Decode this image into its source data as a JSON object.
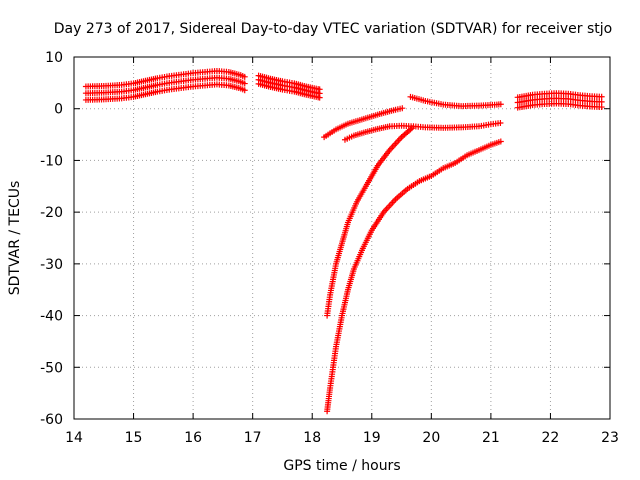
{
  "chart_data": {
    "type": "scatter",
    "title": "Day 273 of 2017, Sidereal Day-to-day VTEC variation (SDTVAR) for receiver stjo",
    "xlabel": "GPS time / hours",
    "ylabel": "SDTVAR / TECUs",
    "xlim": [
      14,
      23
    ],
    "ylim": [
      -60,
      10
    ],
    "xticks": [
      "14",
      "15",
      "16",
      "17",
      "18",
      "19",
      "20",
      "21",
      "22",
      "23"
    ],
    "yticks": [
      "10",
      "0",
      "-10",
      "-20",
      "-30",
      "-40",
      "-50",
      "-60"
    ],
    "grid": true,
    "marker": "+",
    "color": "#ff0000",
    "series": [
      {
        "x": [
          14.2,
          14.5,
          14.8,
          15.0,
          15.2,
          15.4,
          15.6,
          15.8,
          16.0,
          16.2,
          16.4,
          16.6,
          16.8,
          16.9
        ],
        "y": [
          3.0,
          3.1,
          3.3,
          3.6,
          4.1,
          4.6,
          5.0,
          5.3,
          5.6,
          5.8,
          6.0,
          5.8,
          5.2,
          4.7
        ],
        "band": 1.3
      },
      {
        "x": [
          17.1,
          17.3,
          17.5,
          17.7,
          17.9,
          18.1,
          18.15
        ],
        "y": [
          5.6,
          5.0,
          4.5,
          4.1,
          3.5,
          3.0,
          2.9
        ],
        "band": 0.8
      },
      {
        "x": [
          19.65,
          19.9,
          20.2,
          20.5,
          20.8,
          21.1,
          21.2
        ],
        "y": [
          2.3,
          1.5,
          0.8,
          0.5,
          0.6,
          0.8,
          0.9
        ],
        "band": 0.5
      },
      {
        "x": [
          21.45,
          21.7,
          21.9,
          22.1,
          22.3,
          22.5,
          22.7,
          22.9
        ],
        "y": [
          1.2,
          1.7,
          1.9,
          2.0,
          1.9,
          1.6,
          1.4,
          1.3
        ],
        "band": 1.0
      },
      {
        "x": [
          18.2,
          18.4,
          18.6,
          18.8,
          19.0,
          19.2,
          19.4,
          19.55
        ],
        "y": [
          -5.5,
          -4.0,
          -2.9,
          -2.2,
          -1.5,
          -0.8,
          -0.2,
          0.2
        ],
        "band": 0.3
      },
      {
        "x": [
          18.55,
          18.7,
          18.9,
          19.1,
          19.3,
          19.5,
          19.7,
          19.9,
          20.2,
          20.5,
          20.8,
          21.0,
          21.2
        ],
        "y": [
          -6.0,
          -5.2,
          -4.5,
          -3.9,
          -3.4,
          -3.3,
          -3.4,
          -3.6,
          -3.7,
          -3.6,
          -3.4,
          -3.0,
          -2.7
        ],
        "band": 0.3
      },
      {
        "x": [
          18.25,
          18.3,
          18.4,
          18.5,
          18.6,
          18.75,
          18.9,
          19.1,
          19.3,
          19.5,
          19.6,
          19.7
        ],
        "y": [
          -40.0,
          -36.0,
          -30.0,
          -26.0,
          -22.0,
          -18.0,
          -15.0,
          -11.0,
          -8.0,
          -5.5,
          -4.5,
          -3.5
        ],
        "band": 0.3
      },
      {
        "x": [
          18.25,
          18.3,
          18.35,
          18.4,
          18.5,
          18.6,
          18.7,
          18.85,
          19.0,
          19.2,
          19.4,
          19.6,
          19.8,
          20.0,
          20.2,
          20.4,
          20.6,
          20.8,
          21.0,
          21.2
        ],
        "y": [
          -58.5,
          -54.0,
          -50.0,
          -46.0,
          -40.0,
          -35.0,
          -31.0,
          -27.0,
          -23.5,
          -20.0,
          -17.5,
          -15.5,
          -14.0,
          -13.0,
          -11.5,
          -10.5,
          -9.0,
          -8.0,
          -7.0,
          -6.2
        ],
        "band": 0.3
      }
    ]
  }
}
